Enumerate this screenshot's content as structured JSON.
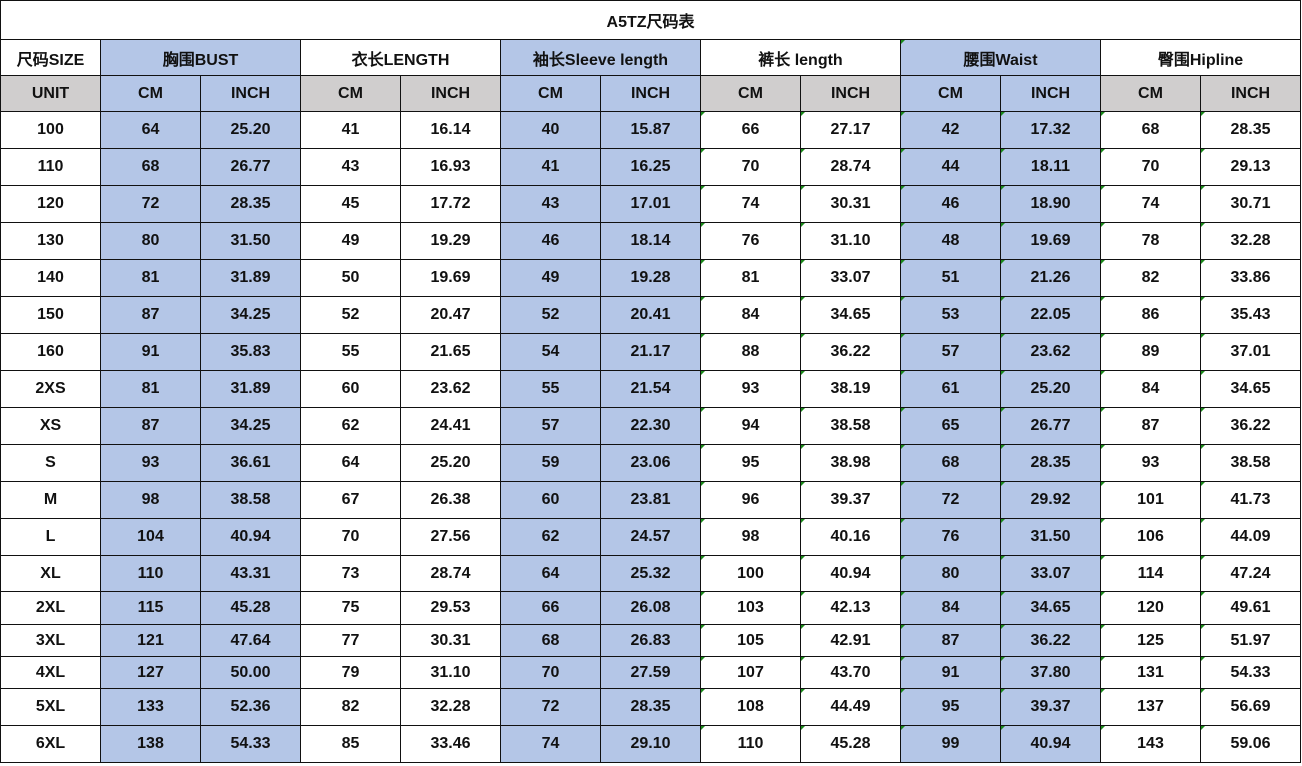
{
  "title": "A5TZ尺码表",
  "header": {
    "size_label": "尺码SIZE",
    "groups": [
      "胸围BUST",
      "衣长LENGTH",
      "袖长Sleeve length",
      "裤长 length",
      "腰围Waist",
      "臀围Hipline"
    ],
    "blue_groups": [
      true,
      false,
      true,
      false,
      true,
      false
    ]
  },
  "units": {
    "label": "UNIT",
    "cm": "CM",
    "inch": "INCH"
  },
  "colors": {
    "blue": "#b4c6e7",
    "gray": "#d0cece",
    "border": "#111111"
  },
  "rows": [
    [
      "100",
      "64",
      "25.20",
      "41",
      "16.14",
      "40",
      "15.87",
      "66",
      "27.17",
      "42",
      "17.32",
      "68",
      "28.35"
    ],
    [
      "110",
      "68",
      "26.77",
      "43",
      "16.93",
      "41",
      "16.25",
      "70",
      "28.74",
      "44",
      "18.11",
      "70",
      "29.13"
    ],
    [
      "120",
      "72",
      "28.35",
      "45",
      "17.72",
      "43",
      "17.01",
      "74",
      "30.31",
      "46",
      "18.90",
      "74",
      "30.71"
    ],
    [
      "130",
      "80",
      "31.50",
      "49",
      "19.29",
      "46",
      "18.14",
      "76",
      "31.10",
      "48",
      "19.69",
      "78",
      "32.28"
    ],
    [
      "140",
      "81",
      "31.89",
      "50",
      "19.69",
      "49",
      "19.28",
      "81",
      "33.07",
      "51",
      "21.26",
      "82",
      "33.86"
    ],
    [
      "150",
      "87",
      "34.25",
      "52",
      "20.47",
      "52",
      "20.41",
      "84",
      "34.65",
      "53",
      "22.05",
      "86",
      "35.43"
    ],
    [
      "160",
      "91",
      "35.83",
      "55",
      "21.65",
      "54",
      "21.17",
      "88",
      "36.22",
      "57",
      "23.62",
      "89",
      "37.01"
    ],
    [
      "2XS",
      "81",
      "31.89",
      "60",
      "23.62",
      "55",
      "21.54",
      "93",
      "38.19",
      "61",
      "25.20",
      "84",
      "34.65"
    ],
    [
      "XS",
      "87",
      "34.25",
      "62",
      "24.41",
      "57",
      "22.30",
      "94",
      "38.58",
      "65",
      "26.77",
      "87",
      "36.22"
    ],
    [
      "S",
      "93",
      "36.61",
      "64",
      "25.20",
      "59",
      "23.06",
      "95",
      "38.98",
      "68",
      "28.35",
      "93",
      "38.58"
    ],
    [
      "M",
      "98",
      "38.58",
      "67",
      "26.38",
      "60",
      "23.81",
      "96",
      "39.37",
      "72",
      "29.92",
      "101",
      "41.73"
    ],
    [
      "L",
      "104",
      "40.94",
      "70",
      "27.56",
      "62",
      "24.57",
      "98",
      "40.16",
      "76",
      "31.50",
      "106",
      "44.09"
    ],
    [
      "XL",
      "110",
      "43.31",
      "73",
      "28.74",
      "64",
      "25.32",
      "100",
      "40.94",
      "80",
      "33.07",
      "114",
      "47.24"
    ],
    [
      "2XL",
      "115",
      "45.28",
      "75",
      "29.53",
      "66",
      "26.08",
      "103",
      "42.13",
      "84",
      "34.65",
      "120",
      "49.61"
    ],
    [
      "3XL",
      "121",
      "47.64",
      "77",
      "30.31",
      "68",
      "26.83",
      "105",
      "42.91",
      "87",
      "36.22",
      "125",
      "51.97"
    ],
    [
      "4XL",
      "127",
      "50.00",
      "79",
      "31.10",
      "70",
      "27.59",
      "107",
      "43.70",
      "91",
      "37.80",
      "131",
      "54.33"
    ],
    [
      "5XL",
      "133",
      "52.36",
      "82",
      "32.28",
      "72",
      "28.35",
      "108",
      "44.49",
      "95",
      "39.37",
      "137",
      "56.69"
    ],
    [
      "6XL",
      "138",
      "54.33",
      "85",
      "33.46",
      "74",
      "29.10",
      "110",
      "45.28",
      "99",
      "40.94",
      "143",
      "59.06"
    ]
  ]
}
